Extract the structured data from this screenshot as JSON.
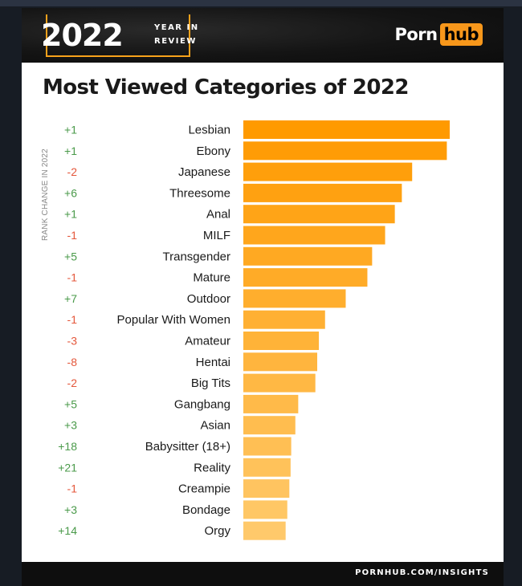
{
  "header": {
    "badge_year": "2022",
    "badge_line1": "YEAR IN",
    "badge_line2": "REVIEW",
    "logo_part1": "Porn",
    "logo_part2": "hub"
  },
  "footer": {
    "text": "PORNHUB.COM/INSIGHTS"
  },
  "colors": {
    "bar_top": "#ff9a00",
    "bar_bottom": "#ffc96b",
    "positive": "#4a9a4a",
    "negative": "#e4573b",
    "accent": "#f7a21b"
  },
  "chart_data": {
    "type": "bar",
    "orientation": "horizontal",
    "title": "Most Viewed Categories of 2022",
    "rank_change_label": "RANK CHANGE IN 2022",
    "categories": [
      "Lesbian",
      "Ebony",
      "Japanese",
      "Threesome",
      "Anal",
      "MILF",
      "Transgender",
      "Mature",
      "Outdoor",
      "Popular With Women",
      "Amateur",
      "Hentai",
      "Big Tits",
      "Gangbang",
      "Asian",
      "Babysitter (18+)",
      "Reality",
      "Creampie",
      "Bondage",
      "Orgy"
    ],
    "rank_changes": [
      "+1",
      "+1",
      "-2",
      "+6",
      "+1",
      "-1",
      "+5",
      "-1",
      "+7",
      "-1",
      "-3",
      "-8",
      "-2",
      "+5",
      "+3",
      "+18",
      "+21",
      "-1",
      "+3",
      "+14"
    ],
    "values": [
      100,
      98.6,
      81.8,
      76.8,
      73.4,
      68.7,
      62.4,
      60.1,
      49.6,
      39.6,
      36.6,
      35.8,
      34.9,
      26.6,
      25.2,
      23.2,
      22.9,
      22.3,
      21.3,
      20.5
    ],
    "xlim": [
      0,
      100
    ],
    "grid": false,
    "legend": "none"
  }
}
